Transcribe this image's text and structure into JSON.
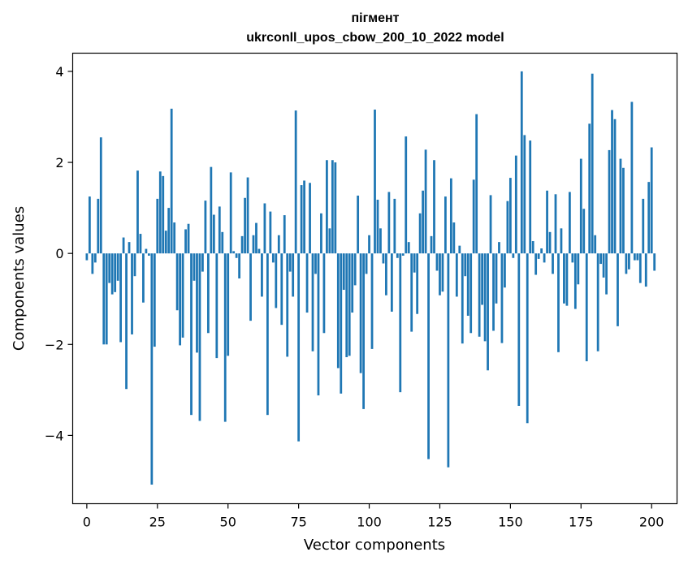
{
  "chart_data": {
    "type": "bar",
    "title": "пігмент",
    "subtitle": "ukrconll_upos_cbow_200_10_2022 model",
    "xlabel": "Vector components",
    "ylabel": "Components values",
    "xlim": [
      -5,
      209
    ],
    "ylim": [
      -5.5,
      4.4
    ],
    "xticks": [
      0,
      25,
      50,
      75,
      100,
      125,
      150,
      175,
      200
    ],
    "yticks": [
      -4,
      -2,
      0,
      2,
      4
    ],
    "xtick_labels": [
      "0",
      "25",
      "50",
      "75",
      "100",
      "125",
      "150",
      "175",
      "200"
    ],
    "ytick_labels": [
      "−4",
      "−2",
      "0",
      "2",
      "4"
    ],
    "grid": false,
    "legend": "none",
    "bar_color": "#1f77b4",
    "series": [
      {
        "values": [
          -0.15,
          1.25,
          -0.45,
          -0.2,
          1.2,
          2.55,
          -2.0,
          -2.0,
          -0.65,
          -0.9,
          -0.85,
          -0.6,
          -1.95,
          0.35,
          -2.98,
          0.25,
          -1.78,
          -0.5,
          1.82,
          0.43,
          -1.08,
          0.1,
          -0.05,
          -5.08,
          -2.05,
          1.2,
          1.8,
          1.7,
          0.5,
          1.0,
          3.18,
          0.68,
          -1.25,
          -2.02,
          -1.85,
          0.53,
          0.65,
          -3.55,
          -0.6,
          -2.18,
          -3.68,
          -0.4,
          1.16,
          -1.75,
          1.9,
          0.85,
          -2.3,
          1.03,
          0.47,
          -3.7,
          -2.25,
          1.78,
          0.05,
          -0.1,
          -0.55,
          0.38,
          1.22,
          1.67,
          -1.48,
          0.4,
          0.67,
          0.1,
          -0.95,
          1.1,
          -3.55,
          0.92,
          -0.2,
          -1.2,
          0.4,
          -1.57,
          0.84,
          -2.27,
          -0.4,
          -0.95,
          3.14,
          -4.13,
          1.5,
          1.6,
          -1.3,
          1.55,
          -2.15,
          -0.45,
          -3.12,
          0.88,
          -1.75,
          2.05,
          0.55,
          2.05,
          2.0,
          -2.52,
          -3.08,
          -0.8,
          -2.28,
          -2.25,
          -1.3,
          -0.7,
          1.27,
          -2.63,
          -3.42,
          -0.45,
          0.4,
          -2.1,
          3.16,
          1.18,
          0.55,
          -0.22,
          -0.92,
          1.35,
          -1.28,
          1.2,
          -0.1,
          -3.05,
          -0.05,
          2.57,
          0.25,
          -1.72,
          -0.42,
          -1.33,
          0.88,
          1.38,
          2.28,
          -4.52,
          0.38,
          2.05,
          -0.38,
          -0.92,
          -0.84,
          1.25,
          -4.7,
          1.65,
          0.68,
          -0.95,
          0.17,
          -1.98,
          -0.5,
          -1.37,
          -1.75,
          1.62,
          3.06,
          -1.83,
          -1.13,
          -1.93,
          -2.57,
          1.28,
          -1.7,
          -1.1,
          0.25,
          -1.97,
          -0.75,
          1.15,
          1.66,
          -0.1,
          2.15,
          -3.35,
          4.0,
          2.6,
          -3.73,
          2.48,
          0.27,
          -0.47,
          -0.12,
          0.11,
          -0.2,
          1.38,
          0.47,
          -0.45,
          1.3,
          -2.17,
          0.55,
          -1.1,
          -1.15,
          1.35,
          -0.2,
          -1.22,
          -0.68,
          2.08,
          0.98,
          -2.37,
          2.85,
          3.95,
          0.4,
          -2.15,
          -0.23,
          -0.53,
          -0.9,
          2.27,
          3.15,
          2.95,
          -1.6,
          2.08,
          1.88,
          -0.45,
          -0.35,
          3.33,
          -0.15,
          -0.15,
          -0.65,
          1.2,
          -0.73,
          1.57,
          2.33,
          -0.38
        ]
      }
    ]
  }
}
